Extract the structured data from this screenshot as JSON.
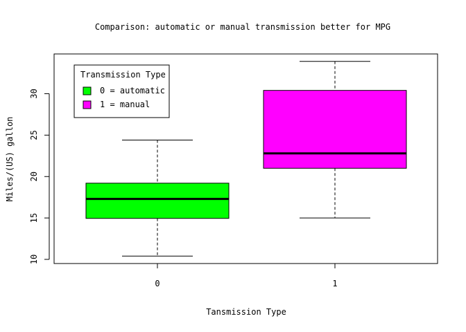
{
  "chart_data": {
    "type": "boxplot",
    "title": "Comparison: automatic or manual transmission better for MPG",
    "xlabel": "Tansmission Type",
    "ylabel": "Miles/(US) gallon",
    "categories": [
      "0",
      "1"
    ],
    "boxes": [
      {
        "category": "0",
        "min": 10.4,
        "q1": 14.95,
        "median": 17.3,
        "q3": 19.2,
        "max": 24.4,
        "color": "#00ff00"
      },
      {
        "category": "1",
        "min": 15.0,
        "q1": 21.0,
        "median": 22.8,
        "q3": 30.4,
        "max": 33.9,
        "color": "#ff00ff"
      }
    ],
    "yticks": [
      10,
      15,
      20,
      25,
      30
    ],
    "ylim": [
      9.5,
      34.8
    ],
    "grid": false,
    "legend": {
      "title": "Transmission Type",
      "placement": "top-left",
      "entries": [
        {
          "label": "0 = automatic",
          "color": "#00ff00"
        },
        {
          "label": "1 = manual",
          "color": "#ff00ff"
        }
      ]
    }
  }
}
